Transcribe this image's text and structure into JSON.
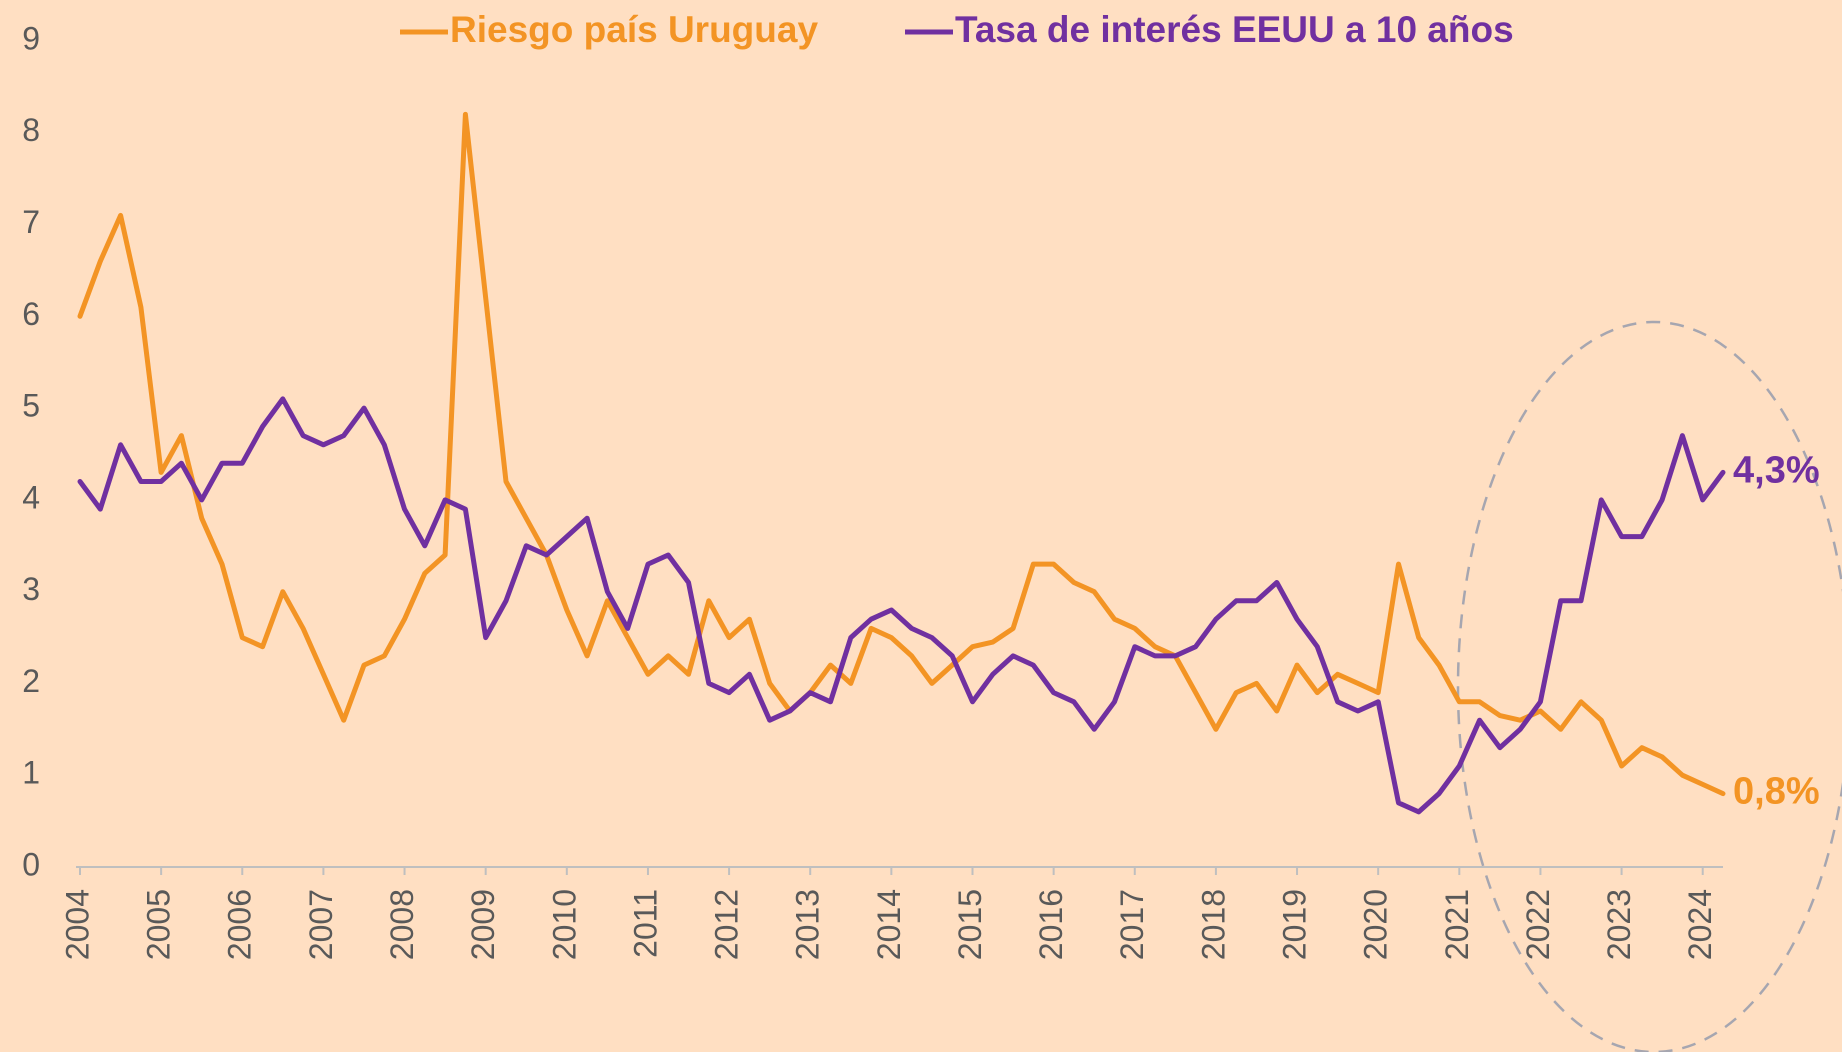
{
  "chart_data": {
    "type": "line",
    "x": [
      2004,
      2004.25,
      2004.5,
      2004.75,
      2005,
      2005.25,
      2005.5,
      2005.75,
      2006,
      2006.25,
      2006.5,
      2006.75,
      2007,
      2007.25,
      2007.5,
      2007.75,
      2008,
      2008.25,
      2008.5,
      2008.75,
      2009,
      2009.25,
      2009.5,
      2009.75,
      2010,
      2010.25,
      2010.5,
      2010.75,
      2011,
      2011.25,
      2011.5,
      2011.75,
      2012,
      2012.25,
      2012.5,
      2012.75,
      2013,
      2013.25,
      2013.5,
      2013.75,
      2014,
      2014.25,
      2014.5,
      2014.75,
      2015,
      2015.25,
      2015.5,
      2015.75,
      2016,
      2016.25,
      2016.5,
      2016.75,
      2017,
      2017.25,
      2017.5,
      2017.75,
      2018,
      2018.25,
      2018.5,
      2018.75,
      2019,
      2019.25,
      2019.5,
      2019.75,
      2020,
      2020.25,
      2020.5,
      2020.75,
      2021,
      2021.25,
      2021.5,
      2021.75,
      2022,
      2022.25,
      2022.5,
      2022.75,
      2023,
      2023.25,
      2023.5,
      2023.75,
      2024,
      2024.25
    ],
    "series": [
      {
        "name": "Riesgo país Uruguay",
        "color": "#f39424",
        "values": [
          6.0,
          6.6,
          7.1,
          6.1,
          4.3,
          4.7,
          3.8,
          3.3,
          2.5,
          2.4,
          3.0,
          2.6,
          2.1,
          1.6,
          2.2,
          2.3,
          2.7,
          3.2,
          3.4,
          8.2,
          6.2,
          4.2,
          3.8,
          3.4,
          2.8,
          2.3,
          2.9,
          2.5,
          2.1,
          2.3,
          2.1,
          2.9,
          2.5,
          2.7,
          2.0,
          1.7,
          1.9,
          2.2,
          2.0,
          2.6,
          2.5,
          2.3,
          2.0,
          2.2,
          2.4,
          2.45,
          2.6,
          3.3,
          3.3,
          3.1,
          3.0,
          2.7,
          2.6,
          2.4,
          2.3,
          1.9,
          1.5,
          1.9,
          2.0,
          1.7,
          2.2,
          1.9,
          2.1,
          2.0,
          1.9,
          3.3,
          2.5,
          2.2,
          1.8,
          1.8,
          1.65,
          1.6,
          1.7,
          1.5,
          1.8,
          1.6,
          1.1,
          1.3,
          1.2,
          1.0,
          0.9,
          0.8
        ],
        "value_labels": [
          null,
          null,
          null,
          null,
          null,
          null,
          null,
          null,
          null,
          null,
          null,
          null,
          null,
          null,
          null,
          null,
          null,
          null,
          null,
          null,
          null,
          null,
          null,
          null,
          null,
          null,
          null,
          null,
          null,
          null,
          null,
          null,
          null,
          null,
          null,
          null,
          null,
          null,
          null,
          null,
          null,
          null,
          null,
          null,
          null,
          null,
          null,
          null,
          null,
          null,
          null,
          null,
          null,
          null,
          null,
          null,
          null,
          null,
          null,
          null,
          null,
          null,
          null,
          null,
          null,
          null,
          null,
          null,
          null,
          null,
          null,
          null,
          null,
          null,
          null,
          null,
          null,
          null,
          null,
          null,
          null,
          "0,8%"
        ]
      },
      {
        "name": "Tasa de interés EEUU a 10 años",
        "color": "#7030a0",
        "values": [
          4.2,
          3.9,
          4.6,
          4.2,
          4.2,
          4.4,
          4.0,
          4.4,
          4.4,
          4.8,
          5.1,
          4.7,
          4.6,
          4.7,
          5.0,
          4.6,
          3.9,
          3.5,
          4.0,
          3.9,
          2.5,
          2.9,
          3.5,
          3.4,
          3.6,
          3.8,
          3.0,
          2.6,
          3.3,
          3.4,
          3.1,
          2.0,
          1.9,
          2.1,
          1.6,
          1.7,
          1.9,
          1.8,
          2.5,
          2.7,
          2.8,
          2.6,
          2.5,
          2.3,
          1.8,
          2.1,
          2.3,
          2.2,
          1.9,
          1.8,
          1.5,
          1.8,
          2.4,
          2.3,
          2.3,
          2.4,
          2.7,
          2.9,
          2.9,
          3.1,
          2.7,
          2.4,
          1.8,
          1.7,
          1.8,
          0.7,
          0.6,
          0.8,
          1.1,
          1.6,
          1.3,
          1.5,
          1.8,
          2.9,
          2.9,
          4.0,
          3.6,
          3.6,
          4.0,
          4.7,
          4.0,
          4.3
        ],
        "value_labels": [
          null,
          null,
          null,
          null,
          null,
          null,
          null,
          null,
          null,
          null,
          null,
          null,
          null,
          null,
          null,
          null,
          null,
          null,
          null,
          null,
          null,
          null,
          null,
          null,
          null,
          null,
          null,
          null,
          null,
          null,
          null,
          null,
          null,
          null,
          null,
          null,
          null,
          null,
          null,
          null,
          null,
          null,
          null,
          null,
          null,
          null,
          null,
          null,
          null,
          null,
          null,
          null,
          null,
          null,
          null,
          null,
          null,
          null,
          null,
          null,
          null,
          null,
          null,
          null,
          null,
          null,
          null,
          null,
          null,
          null,
          null,
          null,
          null,
          null,
          null,
          null,
          null,
          null,
          null,
          null,
          null,
          "4,3%"
        ]
      }
    ],
    "xlim": [
      2004,
      2024.25
    ],
    "xticks": [
      2004,
      2005,
      2006,
      2007,
      2008,
      2009,
      2010,
      2011,
      2012,
      2013,
      2014,
      2015,
      2016,
      2017,
      2018,
      2019,
      2020,
      2021,
      2022,
      2023,
      2024
    ],
    "ylim": [
      0,
      9
    ],
    "yticks": [
      0,
      1,
      2,
      3,
      4,
      5,
      6,
      7,
      8,
      9
    ],
    "grid": false,
    "legend": "top"
  }
}
